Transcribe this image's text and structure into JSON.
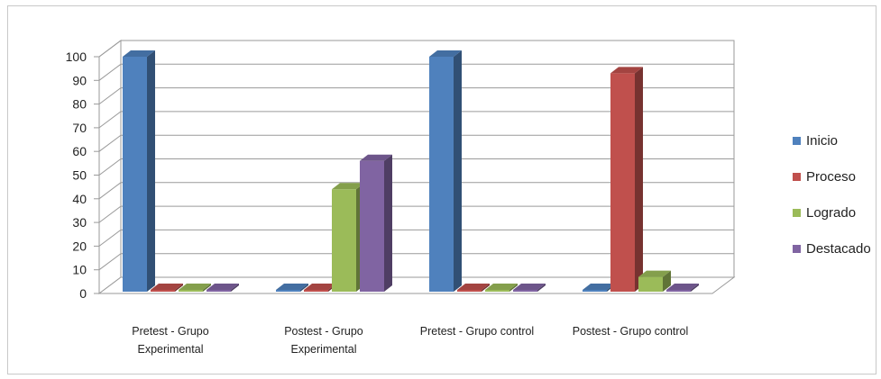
{
  "chart_data": {
    "type": "bar",
    "categories": [
      [
        "Pretest - Grupo",
        "Experimental"
      ],
      [
        "Postest - Grupo",
        "Experimental"
      ],
      [
        "Pretest - Grupo  control"
      ],
      [
        "Postest - Grupo control"
      ]
    ],
    "series": [
      {
        "name": "Inicio",
        "values": [
          100,
          0,
          100,
          0
        ],
        "color": "#4f81bd"
      },
      {
        "name": "Proceso",
        "values": [
          0,
          0,
          0,
          93
        ],
        "color": "#c0504d"
      },
      {
        "name": "Logrado",
        "values": [
          0,
          44,
          0,
          7
        ],
        "color": "#9bbb59"
      },
      {
        "name": "Destacado",
        "values": [
          0,
          56,
          0,
          0
        ],
        "color": "#8064a2"
      }
    ],
    "yticks": [
      "0",
      "10",
      "20",
      "30",
      "40",
      "50",
      "60",
      "70",
      "80",
      "90",
      "100"
    ],
    "ylim": [
      0,
      100
    ],
    "grid": true,
    "legend_position": "right",
    "style": "3d-column"
  }
}
